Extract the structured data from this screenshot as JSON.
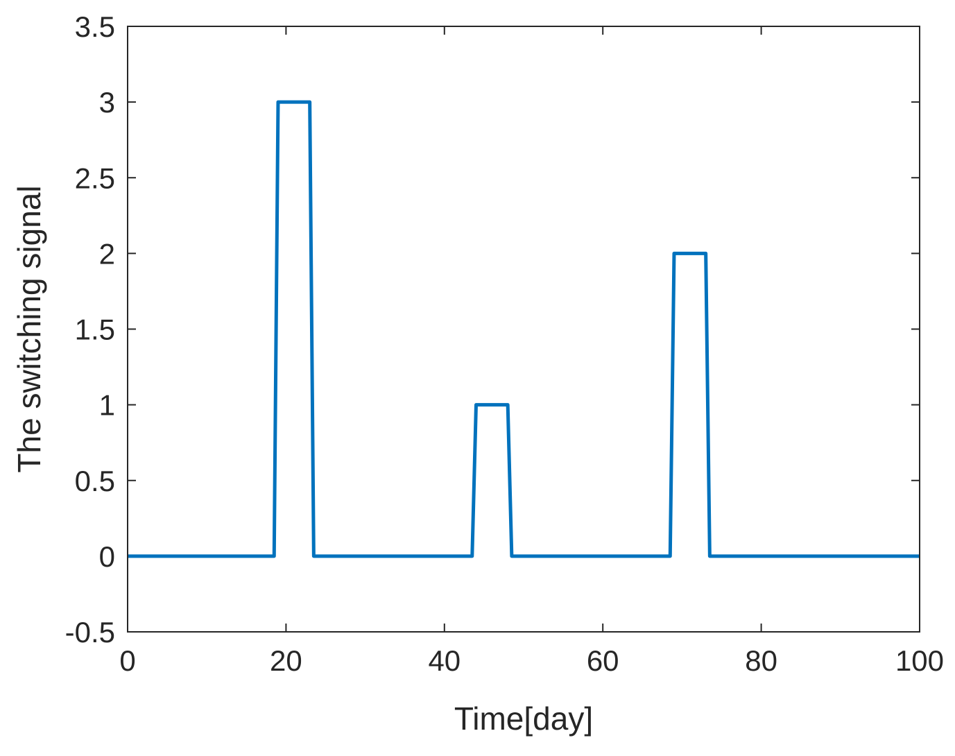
{
  "chart_data": {
    "type": "line",
    "title": "",
    "xlabel": "Time[day]",
    "ylabel": "The switching signal",
    "xlim": [
      0,
      100
    ],
    "ylim": [
      -0.5,
      3.5
    ],
    "xticks": [
      0,
      20,
      40,
      60,
      80,
      100
    ],
    "yticks": [
      -0.5,
      0,
      0.5,
      1,
      1.5,
      2,
      2.5,
      3,
      3.5
    ],
    "xtick_labels": [
      "0",
      "20",
      "40",
      "60",
      "80",
      "100"
    ],
    "ytick_labels": [
      "-0.5",
      "0",
      "0.5",
      "1",
      "1.5",
      "2",
      "2.5",
      "3",
      "3.5"
    ],
    "grid": false,
    "series": [
      {
        "color": "#0072BD",
        "x": [
          0,
          18.5,
          19,
          23,
          23.5,
          43.5,
          44,
          48,
          48.5,
          68.5,
          69,
          73,
          73.5,
          100
        ],
        "y": [
          0,
          0,
          3,
          3,
          0,
          0,
          1,
          1,
          0,
          0,
          2,
          2,
          0,
          0
        ]
      }
    ]
  }
}
